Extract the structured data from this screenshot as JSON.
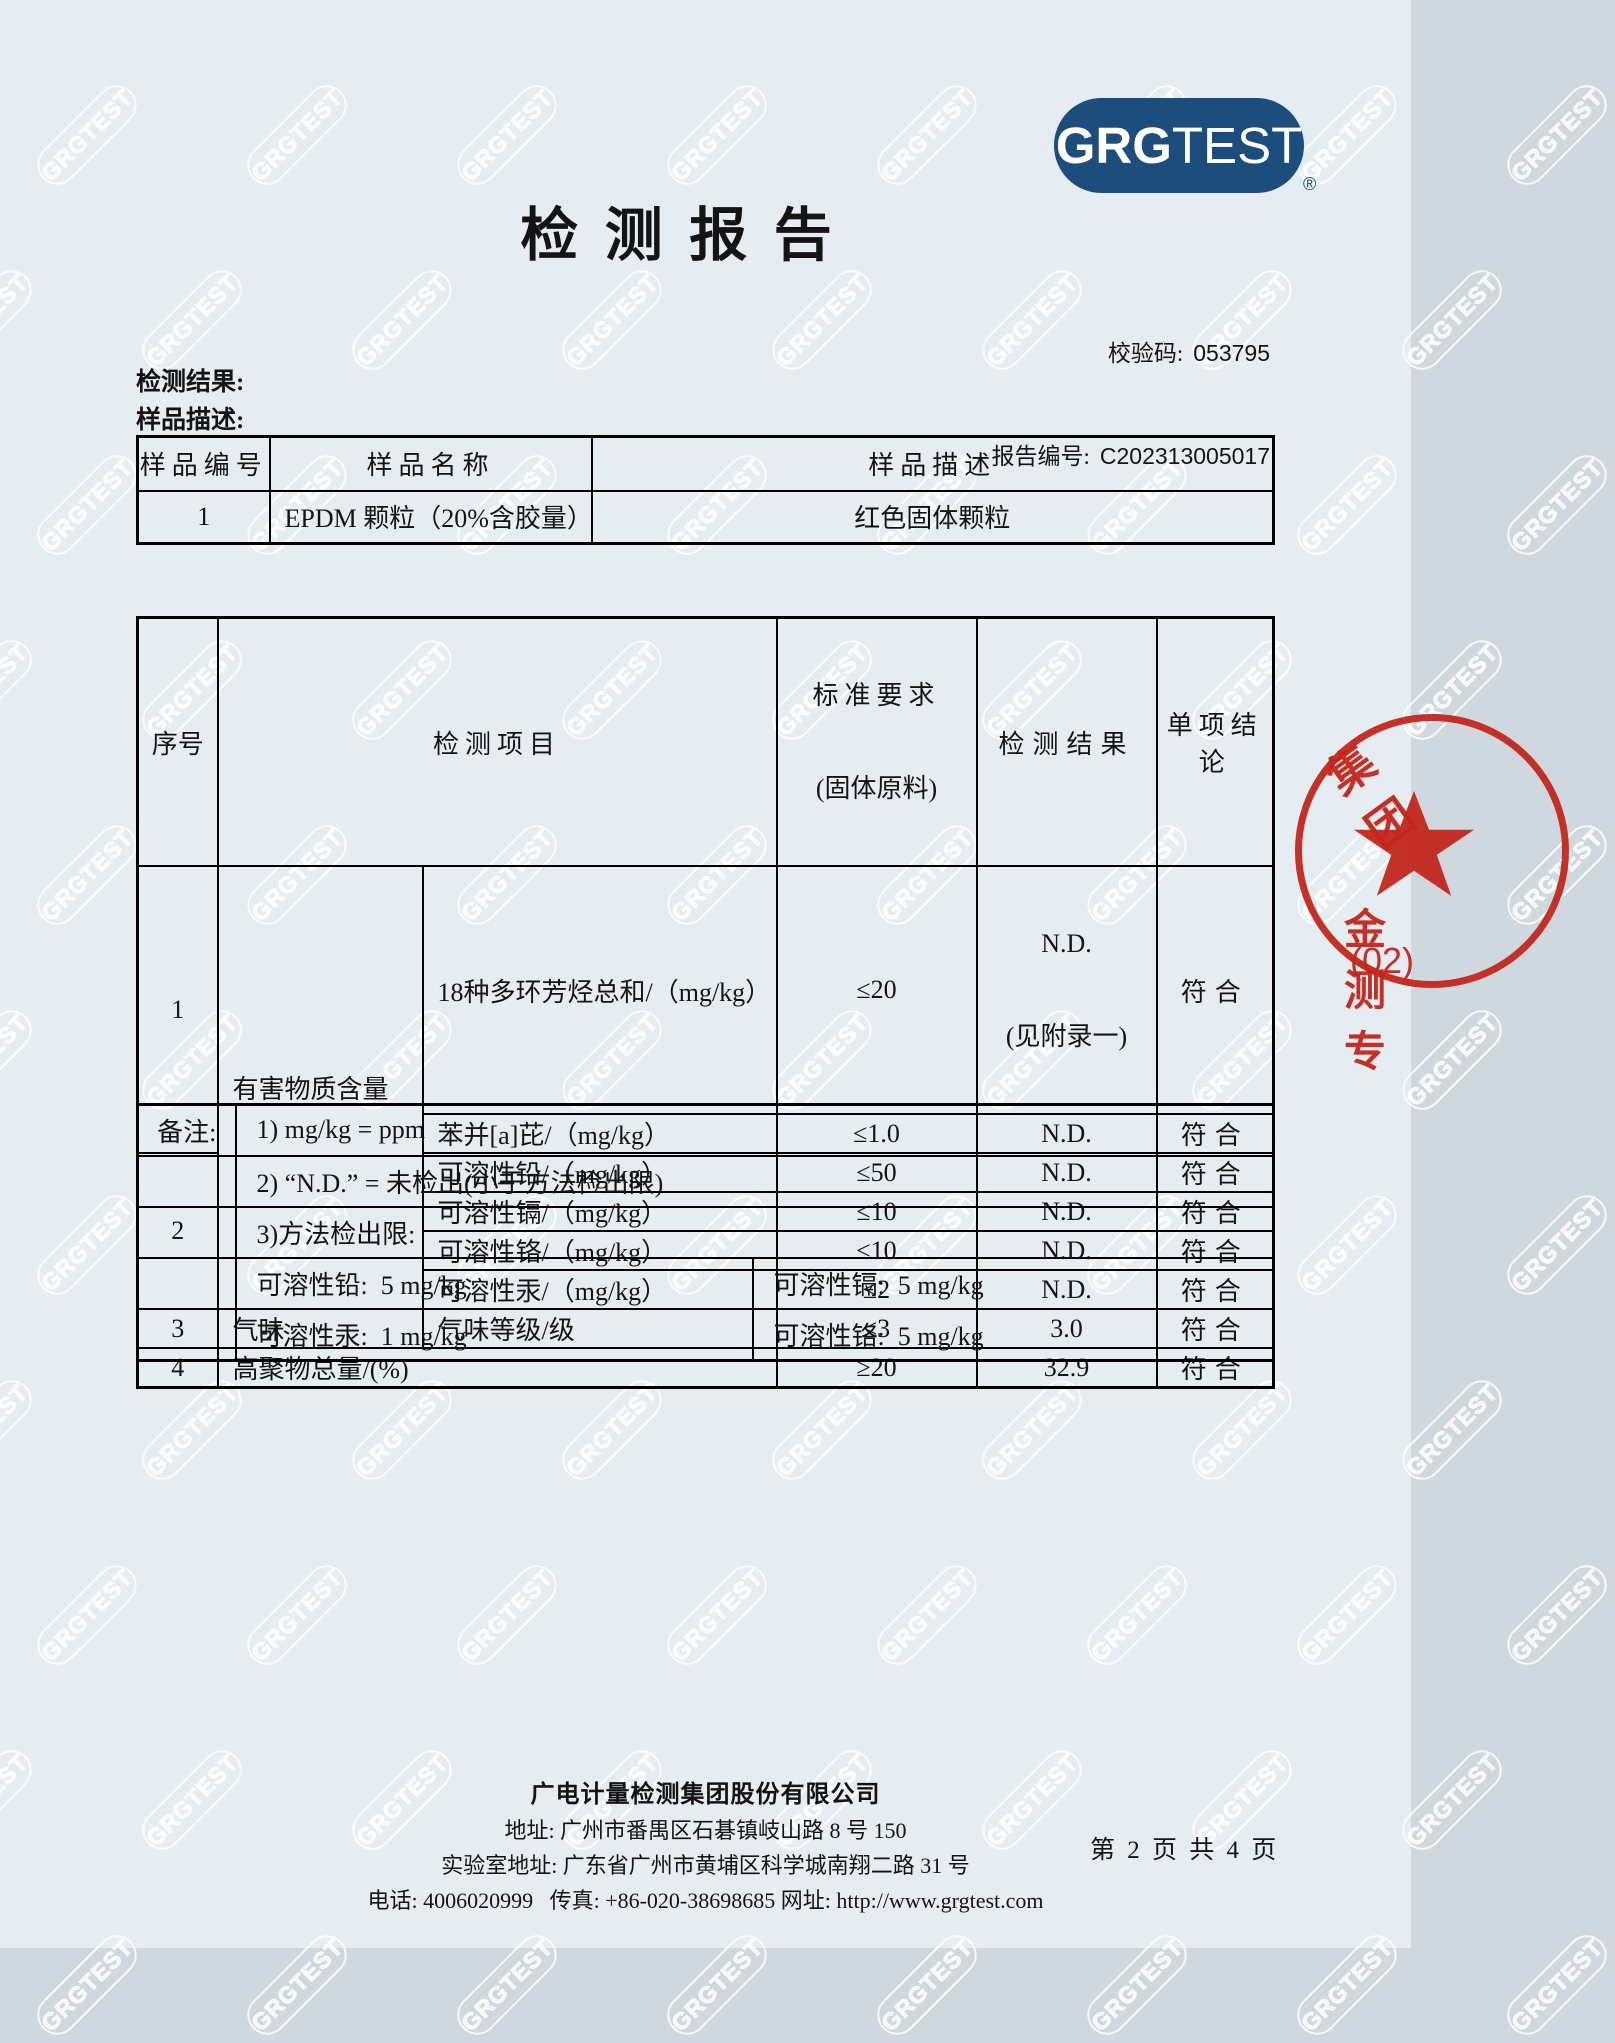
{
  "colors": {
    "bg": "#e5ecf2",
    "navy": "#1c4d7d",
    "red": "#c3261b",
    "ink": "#141414"
  },
  "watermark": {
    "text": "GRGTEST"
  },
  "logo": {
    "bold": "GRG",
    "rest": "TEST",
    "registered": "®"
  },
  "title": "检 测 报 告",
  "codes": {
    "verify_label": "校验码:",
    "verify_value": "053795",
    "report_label": "报告编号:",
    "report_value": "C202313005017"
  },
  "section": {
    "results": "检测结果:",
    "sample_desc": "样品描述:"
  },
  "sample_table": {
    "col_no": "样品编号",
    "col_name": "样品名称",
    "col_desc": "样品描述",
    "row": {
      "no": "1",
      "name": "EPDM 颗粒（20%含胶量）",
      "desc": "红色固体颗粒"
    }
  },
  "result_table": {
    "h_no": "序号",
    "h_item": "检测项目",
    "h_std1": "标准要求",
    "h_std2": "(固体原料)",
    "h_result": "检测结果",
    "h_conclusion": "单项结论",
    "group1_no": "1",
    "group2_no": "2",
    "category": "有害物质含量",
    "rows": [
      {
        "item": "18种多环芳烃总和/（mg/kg）",
        "std": "≤20",
        "res1": "N.D.",
        "res2": "(见附录一)",
        "concl": "符合"
      },
      {
        "item": "苯并[a]芘/（mg/kg）",
        "std": "≤1.0",
        "res": "N.D.",
        "concl": "符合"
      },
      {
        "item": "可溶性铅/（mg/kg）",
        "std": "≤50",
        "res": "N.D.",
        "concl": "符合"
      },
      {
        "item": "可溶性镉/（mg/kg）",
        "std": "≤10",
        "res": "N.D.",
        "concl": "符合"
      },
      {
        "item": "可溶性铬/（mg/kg）",
        "std": "≤10",
        "res": "N.D.",
        "concl": "符合"
      },
      {
        "item": "可溶性汞/（mg/kg）",
        "std": "≤2",
        "res": "N.D.",
        "concl": "符合"
      }
    ],
    "odor": {
      "no": "3",
      "category": "气味",
      "item": "气味等级/级",
      "std": "≤3",
      "res": "3.0",
      "concl": "符合"
    },
    "polymer": {
      "no": "4",
      "item": "高聚物总量/(%)",
      "std": "≥20",
      "res": "32.9",
      "concl": "符合"
    }
  },
  "notes": {
    "label": "备注:",
    "note1": "1) mg/kg = ppm",
    "note2": "2) “N.D.” = 未检出(小于方法检出限)",
    "note3": "3)方法检出限:",
    "lod_pb": "可溶性铅:  5 mg/kg",
    "lod_cd": "可溶性镉:  5 mg/kg",
    "lod_hg": "可溶性汞:  1 mg/kg",
    "lod_cr": "可溶性铬:  5 mg/kg"
  },
  "stamp": {
    "arc_text": "集团",
    "line1": "金测专",
    "line2": "(02)"
  },
  "footer": {
    "company": "广电计量检测集团股份有限公司",
    "address": "地址: 广州市番禺区石碁镇岐山路 8 号 150",
    "lab_address": "实验室地址: 广东省广州市黄埔区科学城南翔二路 31 号",
    "contact": "电话: 4006020999   传真: +86-020-38698685 网址: http://www.grgtest.com",
    "page_info": "第 2 页 共 4 页"
  }
}
